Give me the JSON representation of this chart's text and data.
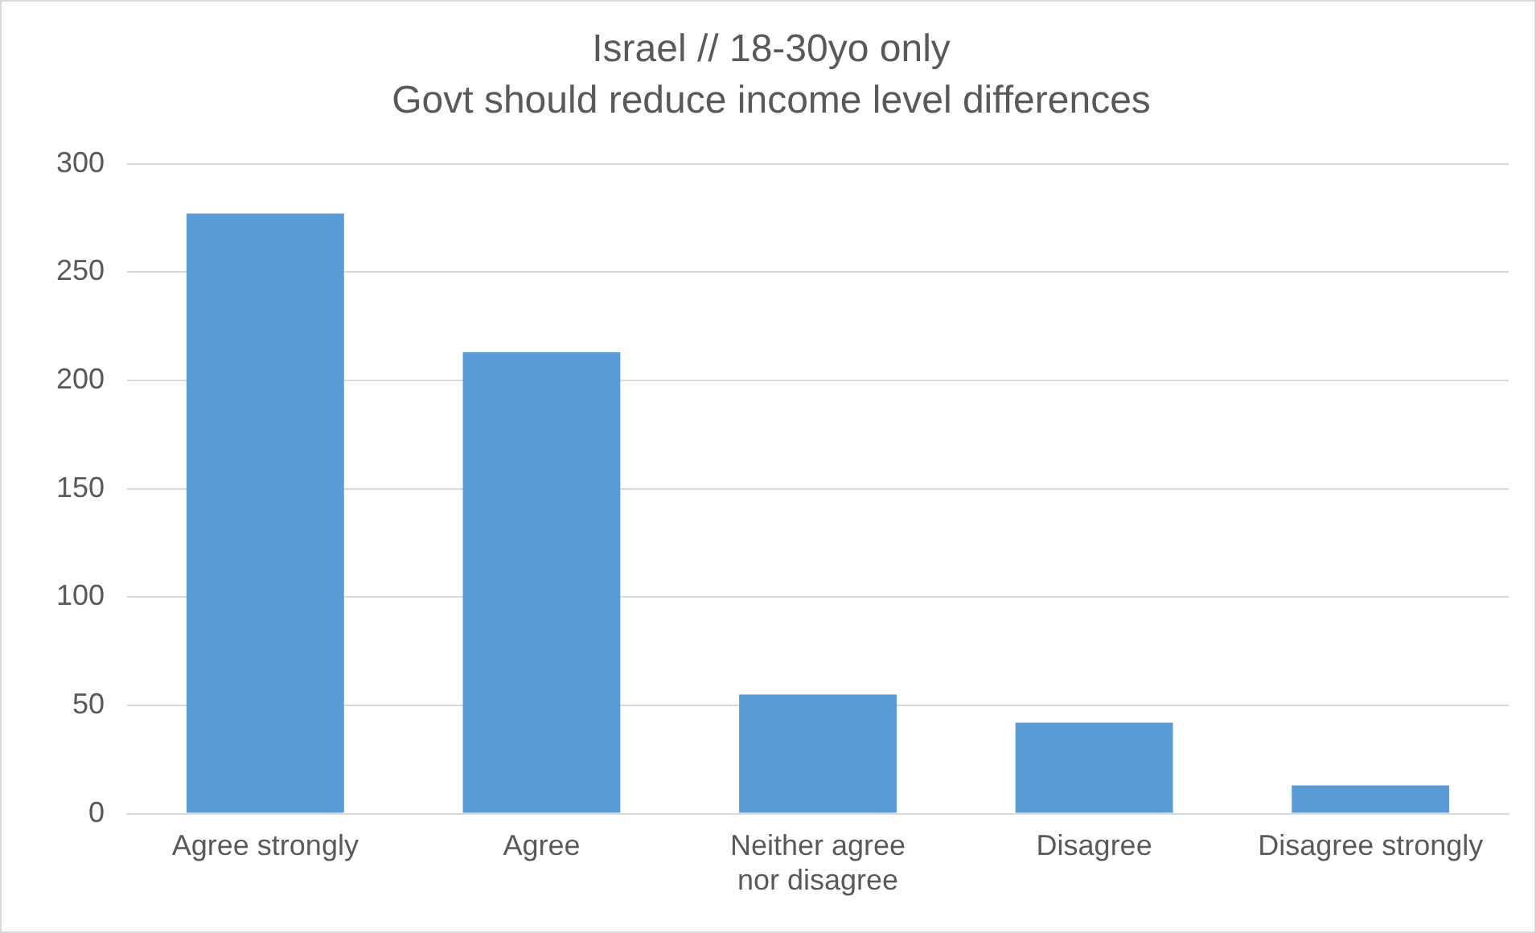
{
  "chart_data": {
    "type": "bar",
    "title": "Israel // 18-30yo only",
    "subtitle": "Govt should reduce income level differences",
    "categories": [
      "Agree strongly",
      "Agree",
      "Neither agree nor disagree",
      "Disagree",
      "Disagree strongly"
    ],
    "values": [
      277,
      213,
      55,
      42,
      13
    ],
    "color": "#5b9bd5",
    "ylim": [
      0,
      300
    ],
    "yticks": [
      0,
      50,
      100,
      150,
      200,
      250,
      300
    ],
    "grid": "y"
  }
}
